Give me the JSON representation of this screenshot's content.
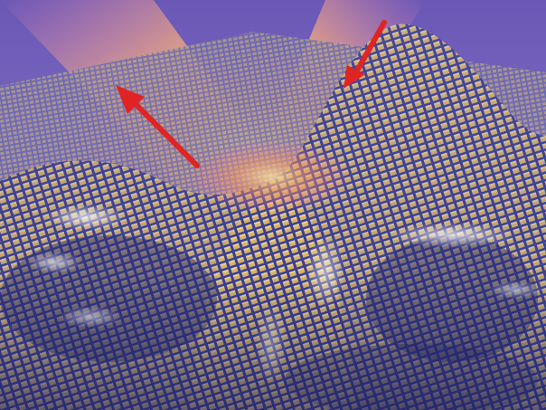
{
  "scene": {
    "description_name": "metasurface-cloak-render",
    "colors": {
      "sky_top": "#5a4fa8",
      "sky_bottom": "#8a7ac8",
      "beam_core": "#ffcf7a",
      "beam_edge": "#ff6fa8",
      "surface_dark": "#3b3f8f",
      "surface_mid": "#8c8fd6",
      "tile_gold": "#d8b46a",
      "tile_light": "#f3e2b0",
      "highlight": "#ffffff",
      "arrow": "#e02424"
    },
    "arrows": [
      {
        "name": "incident-arrow",
        "direction": "down-left"
      },
      {
        "name": "reflected-arrow",
        "direction": "up-left"
      }
    ]
  }
}
